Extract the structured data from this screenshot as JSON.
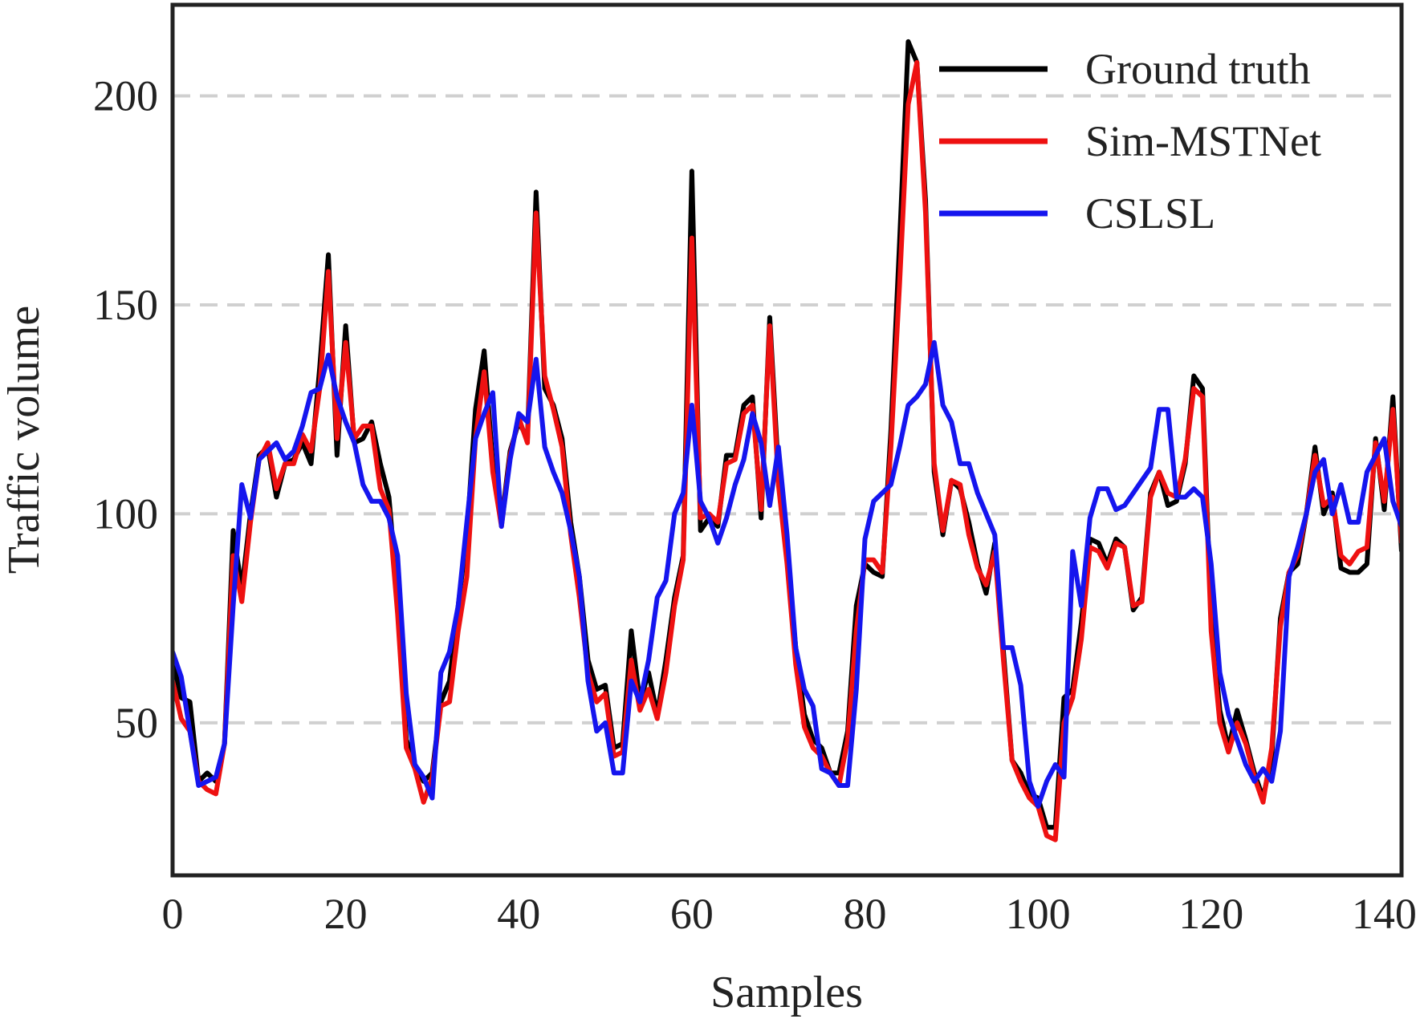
{
  "chart_data": {
    "type": "line",
    "x_label": "Samples",
    "y_label": "Traffic volume",
    "x": [
      0,
      1,
      2,
      3,
      4,
      5,
      6,
      7,
      8,
      9,
      10,
      11,
      12,
      13,
      14,
      15,
      16,
      17,
      18,
      19,
      20,
      21,
      22,
      23,
      24,
      25,
      26,
      27,
      28,
      29,
      30,
      31,
      32,
      33,
      34,
      35,
      36,
      37,
      38,
      39,
      40,
      41,
      42,
      43,
      44,
      45,
      46,
      47,
      48,
      49,
      50,
      51,
      52,
      53,
      54,
      55,
      56,
      57,
      58,
      59,
      60,
      61,
      62,
      63,
      64,
      65,
      66,
      67,
      68,
      69,
      70,
      71,
      72,
      73,
      74,
      75,
      76,
      77,
      78,
      79,
      80,
      81,
      82,
      83,
      84,
      85,
      86,
      87,
      88,
      89,
      90,
      91,
      92,
      93,
      94,
      95,
      96,
      97,
      98,
      99,
      100,
      101,
      102,
      103,
      104,
      105,
      106,
      107,
      108,
      109,
      110,
      111,
      112,
      113,
      114,
      115,
      116,
      117,
      118,
      119,
      120,
      121,
      122,
      123,
      124,
      125,
      126,
      127,
      128,
      129,
      130,
      131,
      132,
      133,
      134,
      135,
      136,
      137,
      138,
      139,
      140,
      141,
      142
    ],
    "series": [
      {
        "name": "Ground truth",
        "color": "#000000",
        "values": [
          65,
          56,
          55,
          36,
          38,
          36,
          45,
          96,
          82,
          100,
          114,
          116,
          104,
          112,
          113,
          117,
          112,
          135,
          162,
          114,
          145,
          117,
          118,
          122,
          112,
          104,
          80,
          46,
          40,
          36,
          38,
          55,
          60,
          78,
          95,
          125,
          139,
          112,
          98,
          115,
          122,
          118,
          177,
          130,
          126,
          118,
          98,
          85,
          65,
          58,
          59,
          44,
          45,
          72,
          55,
          62,
          52,
          65,
          80,
          90,
          182,
          96,
          99,
          97,
          114,
          114,
          126,
          128,
          99,
          147,
          110,
          90,
          68,
          52,
          46,
          44,
          38,
          38,
          48,
          78,
          88,
          86,
          85,
          120,
          165,
          213,
          208,
          175,
          110,
          95,
          108,
          106,
          98,
          88,
          81,
          93,
          67,
          41,
          38,
          33,
          32,
          25,
          25,
          56,
          58,
          74,
          94,
          93,
          88,
          94,
          92,
          77,
          80,
          105,
          110,
          102,
          103,
          112,
          133,
          130,
          75,
          53,
          44,
          53,
          46,
          38,
          32,
          42,
          75,
          86,
          88,
          100,
          116,
          100,
          105,
          87,
          86,
          86,
          88,
          118,
          101,
          128,
          91
        ]
      },
      {
        "name": "Sim-MSTNet",
        "color": "#ee1111",
        "values": [
          60,
          51,
          48,
          36,
          34,
          33,
          45,
          90,
          79,
          98,
          113,
          117,
          106,
          112,
          112,
          119,
          115,
          130,
          158,
          118,
          141,
          118,
          121,
          121,
          106,
          101,
          76,
          44,
          39,
          31,
          37,
          54,
          55,
          72,
          85,
          118,
          134,
          110,
          97,
          114,
          123,
          117,
          172,
          133,
          125,
          116,
          95,
          80,
          62,
          55,
          57,
          42,
          43,
          65,
          53,
          58,
          51,
          62,
          78,
          89,
          166,
          99,
          100,
          98,
          112,
          113,
          124,
          126,
          101,
          145,
          107,
          88,
          64,
          49,
          44,
          42,
          38,
          35,
          46,
          72,
          89,
          89,
          86,
          116,
          155,
          198,
          208,
          172,
          112,
          96,
          108,
          107,
          95,
          87,
          83,
          91,
          65,
          41,
          36,
          32,
          30,
          23,
          22,
          50,
          56,
          70,
          92,
          91,
          87,
          93,
          92,
          78,
          79,
          104,
          110,
          105,
          104,
          113,
          130,
          128,
          72,
          50,
          43,
          50,
          45,
          37,
          31,
          44,
          73,
          86,
          90,
          100,
          114,
          102,
          104,
          90,
          88,
          91,
          92,
          117,
          103,
          125,
          93
        ]
      },
      {
        "name": "CSLSL",
        "color": "#1515ee",
        "values": [
          67,
          61,
          48,
          35,
          36,
          37,
          45,
          78,
          107,
          99,
          113,
          115,
          117,
          113,
          115,
          121,
          129,
          130,
          138,
          128,
          122,
          117,
          107,
          103,
          103,
          99,
          90,
          57,
          40,
          37,
          32,
          62,
          67,
          78,
          98,
          118,
          124,
          129,
          97,
          113,
          124,
          122,
          137,
          116,
          110,
          105,
          96,
          85,
          60,
          48,
          50,
          38,
          38,
          60,
          55,
          65,
          80,
          84,
          100,
          105,
          126,
          103,
          99,
          93,
          99,
          107,
          113,
          124,
          117,
          102,
          116,
          95,
          68,
          58,
          54,
          39,
          38,
          35,
          35,
          58,
          94,
          103,
          105,
          107,
          116,
          126,
          128,
          131,
          141,
          126,
          122,
          112,
          112,
          105,
          100,
          95,
          68,
          68,
          59,
          36,
          30,
          36,
          40,
          37,
          91,
          78,
          99,
          106,
          106,
          101,
          102,
          105,
          108,
          111,
          125,
          125,
          104,
          104,
          106,
          104,
          88,
          62,
          52,
          46,
          40,
          36,
          39,
          36,
          48,
          85,
          92,
          100,
          110,
          113,
          100,
          107,
          98,
          98,
          110,
          114,
          118,
          103,
          97
        ]
      }
    ],
    "xlim": [
      0,
      142
    ],
    "ylim": [
      13.5,
      221.8
    ],
    "xticks": [
      0,
      20,
      40,
      60,
      80,
      100,
      120,
      140
    ],
    "yticks": [
      50,
      100,
      150,
      200
    ],
    "grid": true,
    "legend": "upper right"
  }
}
